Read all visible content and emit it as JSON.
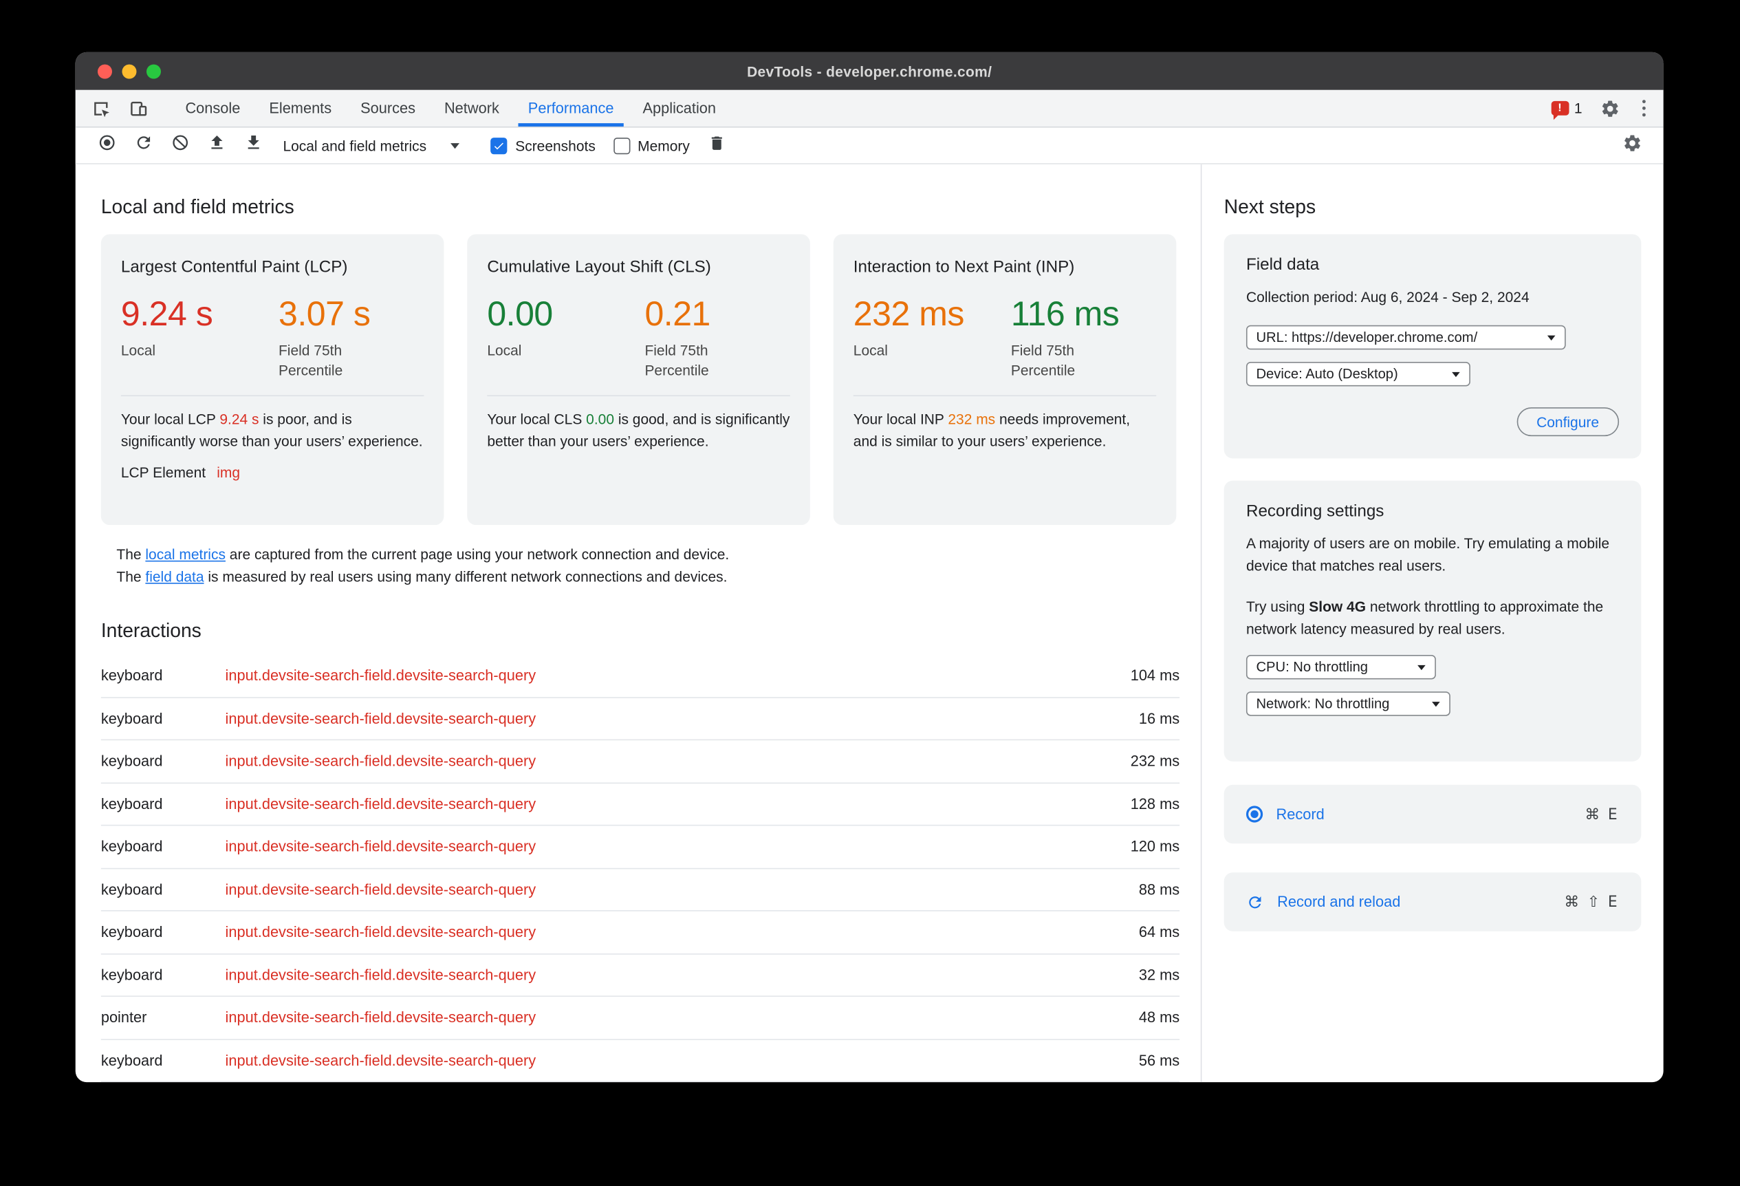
{
  "window": {
    "title": "DevTools - developer.chrome.com/"
  },
  "tabbar": {
    "tabs": [
      {
        "label": "Console"
      },
      {
        "label": "Elements"
      },
      {
        "label": "Sources"
      },
      {
        "label": "Network"
      },
      {
        "label": "Performance"
      },
      {
        "label": "Application"
      }
    ],
    "active_tab": "Performance",
    "issues_count": "1"
  },
  "toolbar": {
    "view_select": "Local and field metrics",
    "screenshots_label": "Screenshots",
    "memory_label": "Memory"
  },
  "metrics": {
    "heading": "Local and field metrics",
    "cards": [
      {
        "title": "Largest Contentful Paint (LCP)",
        "local_value": "9.24 s",
        "local_color": "#d93025",
        "local_label": "Local",
        "field_value": "3.07 s",
        "field_color": "#e8710a",
        "field_label": "Field 75th Percentile",
        "desc": [
          {
            "t": "Your local LCP "
          },
          {
            "t": "9.24 s",
            "color": "#d93025"
          },
          {
            "t": " is poor, and is significantly worse than your users’ experience."
          }
        ],
        "extra_label": "LCP Element",
        "extra_link": "img"
      },
      {
        "title": "Cumulative Layout Shift (CLS)",
        "local_value": "0.00",
        "local_color": "#188038",
        "local_label": "Local",
        "field_value": "0.21",
        "field_color": "#e8710a",
        "field_label": "Field 75th Percentile",
        "desc": [
          {
            "t": "Your local CLS "
          },
          {
            "t": "0.00",
            "color": "#188038"
          },
          {
            "t": " is good, and is significantly better than your users’ experience."
          }
        ]
      },
      {
        "title": "Interaction to Next Paint (INP)",
        "local_value": "232 ms",
        "local_color": "#e8710a",
        "local_label": "Local",
        "field_value": "116 ms",
        "field_color": "#188038",
        "field_label": "Field 75th Percentile",
        "desc": [
          {
            "t": "Your local INP "
          },
          {
            "t": "232 ms",
            "color": "#e8710a"
          },
          {
            "t": " needs improvement, and is similar to your users’ experience."
          }
        ]
      }
    ],
    "note_lines": [
      [
        {
          "t": "The "
        },
        {
          "t": "local metrics",
          "link": true,
          "name": "local-metrics-link"
        },
        {
          "t": " are captured from the current page using your network connection and device."
        }
      ],
      [
        {
          "t": "The "
        },
        {
          "t": "field data",
          "link": true,
          "name": "field-data-link"
        },
        {
          "t": " is measured by real users using many different network connections and devices."
        }
      ]
    ]
  },
  "interactions": {
    "heading": "Interactions",
    "rows": [
      {
        "type": "keyboard",
        "target": "input.devsite-search-field.devsite-search-query",
        "duration": "104 ms"
      },
      {
        "type": "keyboard",
        "target": "input.devsite-search-field.devsite-search-query",
        "duration": "16 ms"
      },
      {
        "type": "keyboard",
        "target": "input.devsite-search-field.devsite-search-query",
        "duration": "232 ms"
      },
      {
        "type": "keyboard",
        "target": "input.devsite-search-field.devsite-search-query",
        "duration": "128 ms"
      },
      {
        "type": "keyboard",
        "target": "input.devsite-search-field.devsite-search-query",
        "duration": "120 ms"
      },
      {
        "type": "keyboard",
        "target": "input.devsite-search-field.devsite-search-query",
        "duration": "88 ms"
      },
      {
        "type": "keyboard",
        "target": "input.devsite-search-field.devsite-search-query",
        "duration": "64 ms"
      },
      {
        "type": "keyboard",
        "target": "input.devsite-search-field.devsite-search-query",
        "duration": "32 ms"
      },
      {
        "type": "pointer",
        "target": "input.devsite-search-field.devsite-search-query",
        "duration": "48 ms"
      },
      {
        "type": "keyboard",
        "target": "input.devsite-search-field.devsite-search-query",
        "duration": "56 ms"
      }
    ]
  },
  "next_steps": {
    "heading": "Next steps",
    "field_data": {
      "title": "Field data",
      "collection_period": "Collection period: Aug 6, 2024 - Sep 2, 2024",
      "url_select": "URL: https://developer.chrome.com/",
      "device_select": "Device: Auto (Desktop)",
      "configure_button": "Configure"
    },
    "recording_settings": {
      "title": "Recording settings",
      "tip1": "A majority of users are on mobile. Try emulating a mobile device that matches real users.",
      "tip2": [
        {
          "t": "Try using "
        },
        {
          "t": "Slow 4G",
          "bold": true
        },
        {
          "t": " network throttling to approximate the network latency measured by real users."
        }
      ],
      "cpu_select": "CPU: No throttling",
      "network_select": "Network: No throttling"
    },
    "record": {
      "label": "Record",
      "shortcut": "⌘ E"
    },
    "record_reload": {
      "label": "Record and reload",
      "shortcut": "⌘ ⇧ E"
    }
  },
  "colors": {
    "accent": "#1a73e8",
    "poor": "#d93025",
    "needs_improvement": "#e8710a",
    "good": "#188038"
  }
}
